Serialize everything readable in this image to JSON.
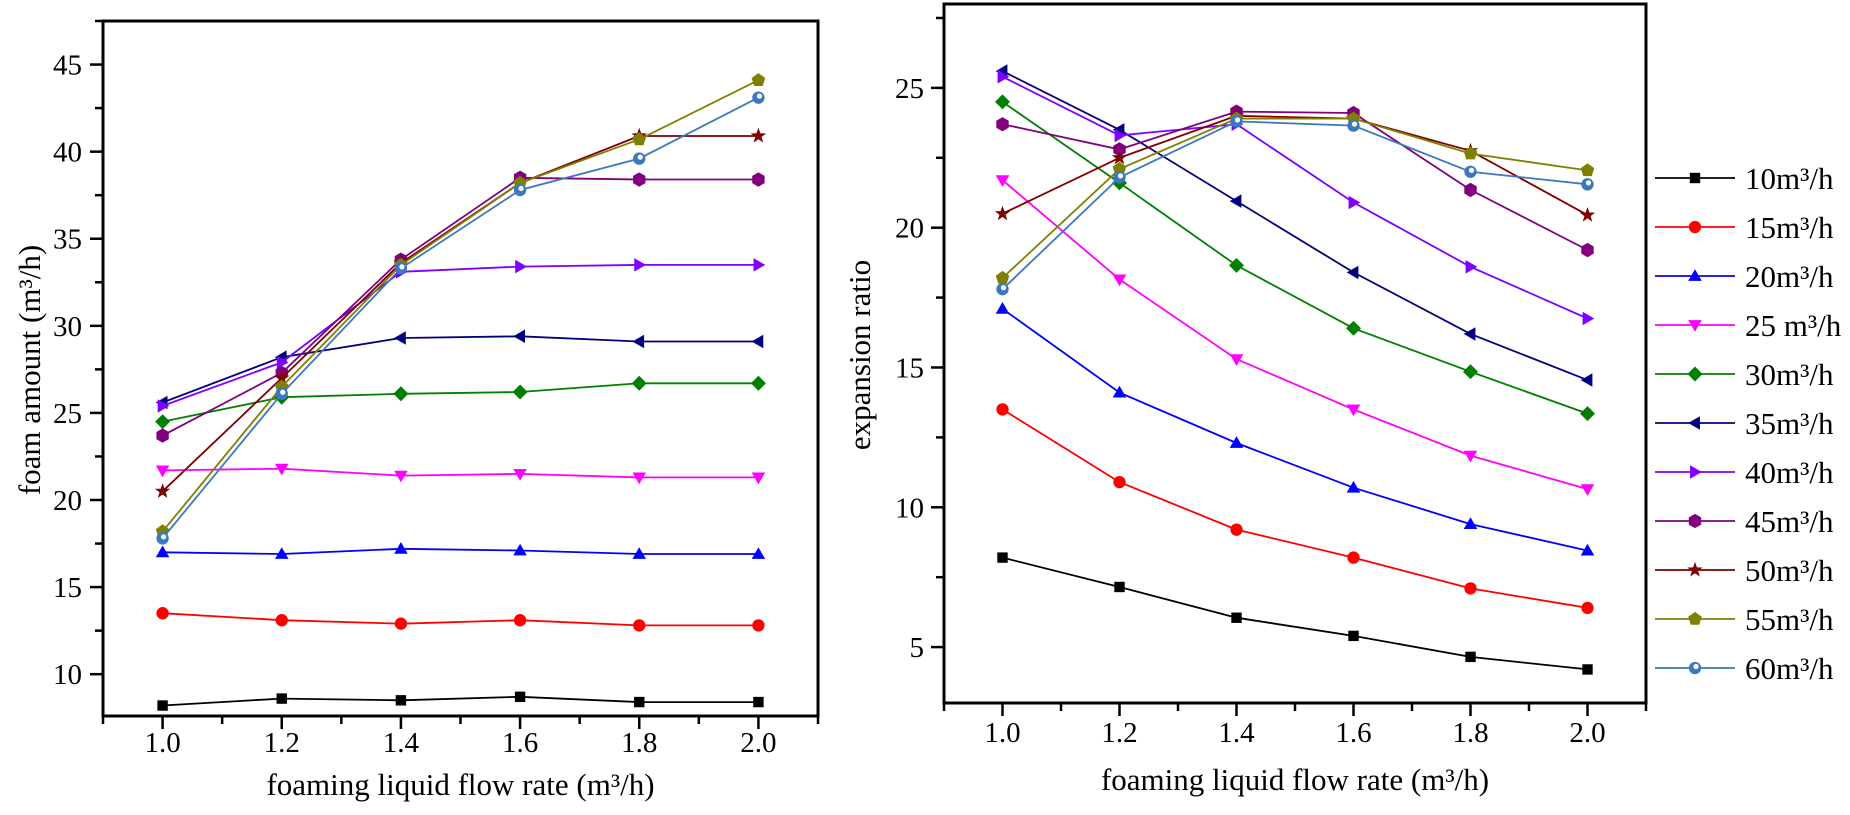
{
  "chart_data": [
    {
      "type": "line",
      "xlabel": "foaming liquid flow rate (m³/h)",
      "ylabel": "foam amount (m³/h)",
      "xlim": [
        0.9,
        2.1
      ],
      "ylim": [
        7.6,
        47.5
      ],
      "xticks": [
        "1.0",
        "1.2",
        "1.4",
        "1.6",
        "1.8",
        "2.0"
      ],
      "yticks": [
        "10",
        "15",
        "20",
        "25",
        "30",
        "35",
        "40",
        "45"
      ],
      "grid": false,
      "x": [
        1.0,
        1.2,
        1.4,
        1.6,
        1.8,
        2.0
      ],
      "series": [
        {
          "name": "10m³/h",
          "values": [
            8.2,
            8.6,
            8.5,
            8.7,
            8.4,
            8.4
          ]
        },
        {
          "name": "15m³/h",
          "values": [
            13.5,
            13.1,
            12.9,
            13.1,
            12.8,
            12.8
          ]
        },
        {
          "name": "20m³/h",
          "values": [
            17.0,
            16.9,
            17.2,
            17.1,
            16.9,
            16.9
          ]
        },
        {
          "name": "25 m³/h",
          "values": [
            21.7,
            21.8,
            21.4,
            21.5,
            21.3,
            21.3
          ]
        },
        {
          "name": "30m³/h",
          "values": [
            24.5,
            25.9,
            26.1,
            26.2,
            26.7,
            26.7
          ]
        },
        {
          "name": "35m³/h",
          "values": [
            25.6,
            28.2,
            29.3,
            29.4,
            29.1,
            29.1
          ]
        },
        {
          "name": "40m³/h",
          "values": [
            25.4,
            27.9,
            33.1,
            33.4,
            33.5,
            33.5
          ]
        },
        {
          "name": "45m³/h",
          "values": [
            23.7,
            27.3,
            33.8,
            38.5,
            38.4,
            38.4
          ]
        },
        {
          "name": "50m³/h",
          "values": [
            20.5,
            27.0,
            33.6,
            38.2,
            40.9,
            40.9
          ]
        },
        {
          "name": "55m³/h",
          "values": [
            18.2,
            26.5,
            33.5,
            38.2,
            40.7,
            44.1
          ]
        },
        {
          "name": "60m³/h",
          "values": [
            17.8,
            26.1,
            33.3,
            37.8,
            39.6,
            43.1
          ]
        }
      ]
    },
    {
      "type": "line",
      "xlabel": "foaming liquid flow rate (m³/h)",
      "ylabel": "expansion ratio",
      "xlim": [
        0.9,
        2.1
      ],
      "ylim": [
        3.0,
        28.0
      ],
      "xticks": [
        "1.0",
        "1.2",
        "1.4",
        "1.6",
        "1.8",
        "2.0"
      ],
      "yticks": [
        "5",
        "10",
        "15",
        "20",
        "25"
      ],
      "grid": false,
      "legend": "right",
      "x": [
        1.0,
        1.2,
        1.4,
        1.6,
        1.8,
        2.0
      ],
      "series": [
        {
          "name": "10m³/h",
          "values": [
            8.2,
            7.15,
            6.05,
            5.4,
            4.65,
            4.2
          ]
        },
        {
          "name": "15m³/h",
          "values": [
            13.5,
            10.9,
            9.2,
            8.2,
            7.1,
            6.4
          ]
        },
        {
          "name": "20m³/h",
          "values": [
            17.1,
            14.1,
            12.3,
            10.7,
            9.4,
            8.45
          ]
        },
        {
          "name": "25 m³/h",
          "values": [
            21.7,
            18.15,
            15.3,
            13.5,
            11.85,
            10.65
          ]
        },
        {
          "name": "30m³/h",
          "values": [
            24.5,
            21.6,
            18.65,
            16.4,
            14.85,
            13.35
          ]
        },
        {
          "name": "35m³/h",
          "values": [
            25.6,
            23.5,
            20.95,
            18.4,
            16.2,
            14.55
          ]
        },
        {
          "name": "40m³/h",
          "values": [
            25.4,
            23.3,
            23.7,
            20.9,
            18.6,
            16.75
          ]
        },
        {
          "name": "45m³/h",
          "values": [
            23.7,
            22.8,
            24.15,
            24.1,
            21.35,
            19.2
          ]
        },
        {
          "name": "50m³/h",
          "values": [
            20.5,
            22.5,
            24.0,
            23.9,
            22.75,
            20.45
          ]
        },
        {
          "name": "55m³/h",
          "values": [
            18.2,
            22.1,
            23.9,
            23.9,
            22.65,
            22.05
          ]
        },
        {
          "name": "60m³/h",
          "values": [
            17.8,
            21.8,
            23.8,
            23.65,
            22.0,
            21.55
          ]
        }
      ]
    }
  ],
  "series_style": [
    {
      "color": "#000000",
      "marker": "square"
    },
    {
      "color": "#ff0000",
      "marker": "circle"
    },
    {
      "color": "#0000ff",
      "marker": "triangle-up"
    },
    {
      "color": "#ff00ff",
      "marker": "triangle-down"
    },
    {
      "color": "#008000",
      "marker": "diamond"
    },
    {
      "color": "#000080",
      "marker": "triangle-left"
    },
    {
      "color": "#8000ff",
      "marker": "triangle-right"
    },
    {
      "color": "#800080",
      "marker": "hexagon"
    },
    {
      "color": "#800000",
      "marker": "star"
    },
    {
      "color": "#808000",
      "marker": "pentagon"
    },
    {
      "color": "#3c78c0",
      "marker": "half-circle"
    }
  ]
}
